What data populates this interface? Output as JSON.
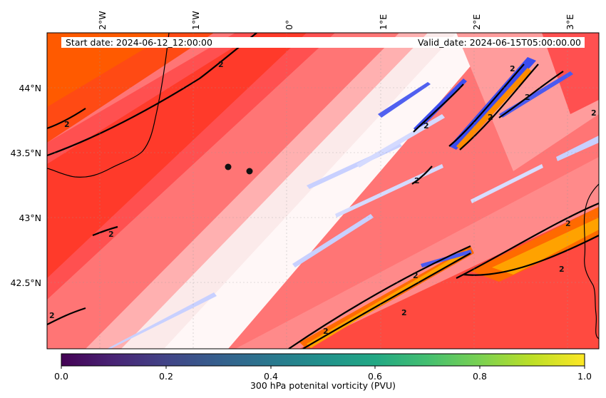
{
  "map": {
    "start_date": "Start date: 2024-06-12_12:00:00",
    "valid_date": "Valid_date: 2024-06-15T05:00:00.00",
    "lon_ticks": [
      "2°W",
      "1°W",
      "0°",
      "1°E",
      "2°E",
      "3°E"
    ],
    "lat_ticks": [
      "44°N",
      "43.5°N",
      "43°N",
      "42.5°N"
    ],
    "contour_label": "2",
    "colors": {
      "background_red": "#ff7070",
      "deep_red": "#ff2a10",
      "orange": "#ff6a00",
      "amber": "#ffa200",
      "pink": "#ffb4b4",
      "white": "#fdf4f4",
      "blue": "#3c4cf0",
      "light_blue": "#c8d0ff",
      "contour": "#000000"
    }
  },
  "colorbar": {
    "label": "300 hPa potenital vorticity (PVU)",
    "ticks": [
      "0.0",
      "0.2",
      "0.4",
      "0.6",
      "0.8",
      "1.0"
    ],
    "colormap": "viridis"
  }
}
